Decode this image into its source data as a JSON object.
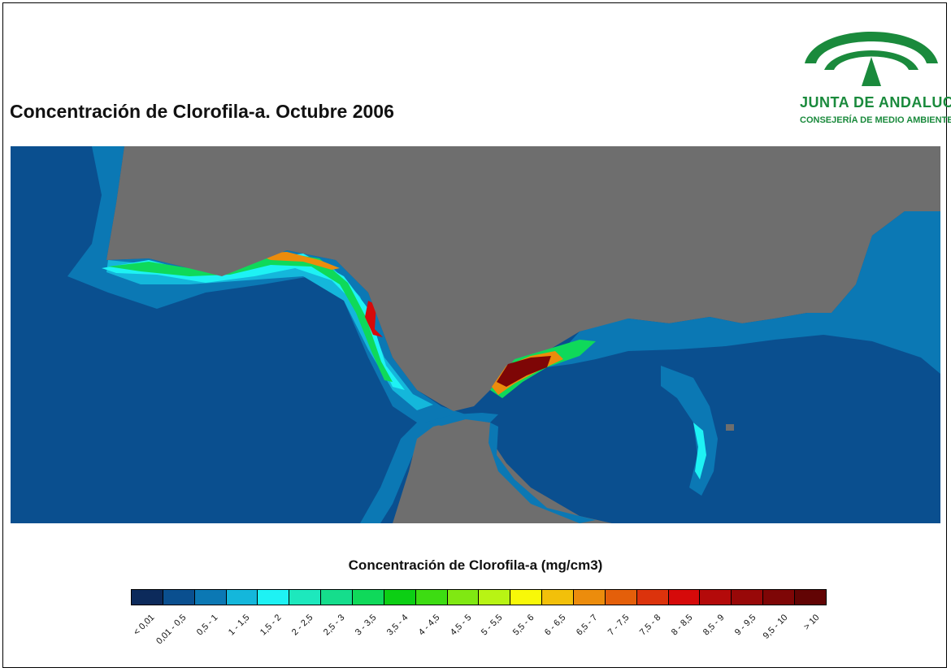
{
  "title": "Concentración de Clorofila-a. Octubre 2006",
  "logo": {
    "name": "JUNTA DE ANDALUCIA",
    "subtitle": "CONSEJERÍA DE MEDIO AMBIENTE",
    "icon": "junta-de-andalucia-arch-logo",
    "color": "#1a8a3c"
  },
  "map": {
    "land_color": "#6e6e6e",
    "ocean_color": "#0a4f8f",
    "icon": "chlorophyll-concentration-map"
  },
  "legend": {
    "title": "Concentración de Clorofila-a (mg/cm3)",
    "classes": [
      {
        "label": "< 0,01",
        "color": "#0c2a5b"
      },
      {
        "label": "0,01 - 0,5",
        "color": "#0a4f8f"
      },
      {
        "label": "0,5 - 1",
        "color": "#0b78b4"
      },
      {
        "label": "1 - 1,5",
        "color": "#14b7db"
      },
      {
        "label": "1,5 - 2",
        "color": "#1ef2f4"
      },
      {
        "label": "2 - 2,5",
        "color": "#1de8bd"
      },
      {
        "label": "2,5 - 3",
        "color": "#15dd8c"
      },
      {
        "label": "3 - 3,5",
        "color": "#0fd95a"
      },
      {
        "label": "3,5 - 4",
        "color": "#0ccf14"
      },
      {
        "label": "4 - 4,5",
        "color": "#3ddc12"
      },
      {
        "label": "4,5 - 5",
        "color": "#80e812"
      },
      {
        "label": "5 - 5,5",
        "color": "#b8f414"
      },
      {
        "label": "5,5 - 6",
        "color": "#f8f808"
      },
      {
        "label": "6 - 6,5",
        "color": "#f2c00a"
      },
      {
        "label": "6,5 - 7",
        "color": "#ec8c0c"
      },
      {
        "label": "7 - 7,5",
        "color": "#e45f0a"
      },
      {
        "label": "7,5 - 8",
        "color": "#dc330c"
      },
      {
        "label": "8 - 8,5",
        "color": "#d60a0a"
      },
      {
        "label": "8,5 - 9",
        "color": "#b40a0a"
      },
      {
        "label": "9 - 9,5",
        "color": "#980808"
      },
      {
        "label": "9,5 - 10",
        "color": "#7e0606"
      },
      {
        "label": "> 10",
        "color": "#620404"
      }
    ]
  }
}
